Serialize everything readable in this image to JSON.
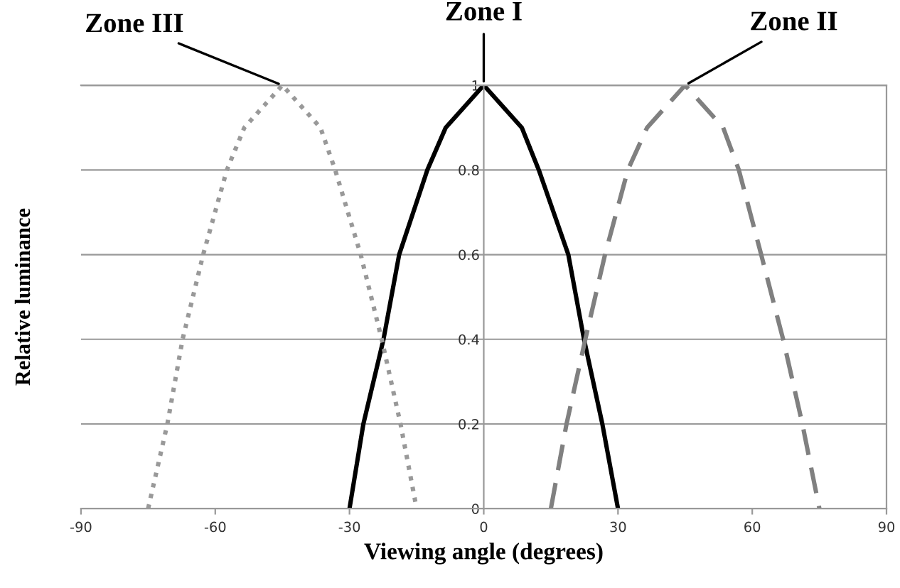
{
  "chart_data": {
    "type": "line",
    "xlabel": "Viewing angle (degrees)",
    "ylabel": "Relative luminance",
    "xlim": [
      -90,
      90
    ],
    "xticks": [
      -90,
      -60,
      -30,
      0,
      30,
      60,
      90
    ],
    "ylim": [
      0,
      1
    ],
    "yticks": [
      0,
      0.2,
      0.4,
      0.6,
      0.8,
      1
    ],
    "grid": "y",
    "marker": "none",
    "series": [
      {
        "color": "#000000",
        "line_style": "solid",
        "x": [
          -30,
          -26.9,
          -22.4,
          -18.9,
          -12.6,
          -8.5,
          0,
          8.5,
          12.3,
          18.9,
          22.4,
          26.5,
          30
        ],
        "values": [
          0,
          0.2,
          0.4,
          0.6,
          0.8,
          0.9,
          1,
          0.9,
          0.8,
          0.6,
          0.4,
          0.2,
          0
        ]
      },
      {
        "color": "#808080",
        "line_style": "dashed",
        "x": [
          15,
          18.5,
          22.7,
          27.1,
          32.2,
          36.5,
          45,
          53.5,
          57,
          62,
          66.9,
          71.2,
          75
        ],
        "values": [
          0,
          0.2,
          0.4,
          0.6,
          0.8,
          0.9,
          1,
          0.9,
          0.8,
          0.6,
          0.4,
          0.2,
          0
        ]
      },
      {
        "color": "#999999",
        "line_style": "dotted",
        "x": [
          -75,
          -70.7,
          -67.3,
          -62.7,
          -57.4,
          -53.5,
          -45,
          -36.5,
          -33.2,
          -27.5,
          -22.8,
          -18.6,
          -15
        ],
        "values": [
          0,
          0.2,
          0.4,
          0.6,
          0.8,
          0.9,
          1,
          0.9,
          0.8,
          0.6,
          0.4,
          0.2,
          0
        ]
      }
    ],
    "annotations": [
      {
        "text": "Zone III",
        "x": -45,
        "y": 1
      },
      {
        "text": "Zone I",
        "x": 0,
        "y": 1
      },
      {
        "text": "Zone II",
        "x": 45,
        "y": 1
      }
    ]
  }
}
